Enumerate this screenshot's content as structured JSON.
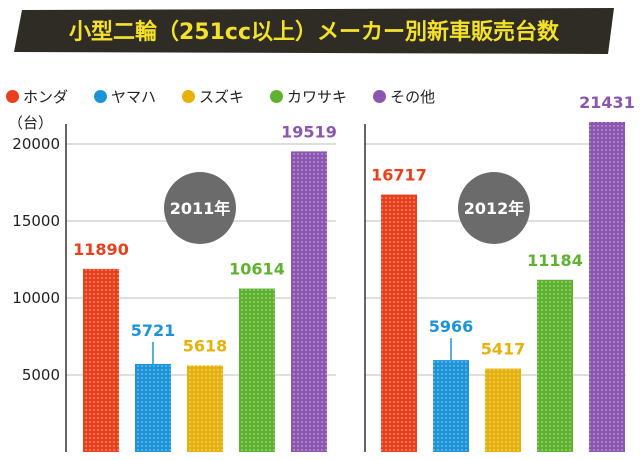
{
  "title": "小型二輪（251cc以上）メーカー別新車販売台数",
  "unit_label": "（台）",
  "colors": {
    "title_bg": "#2f2c25",
    "title_text": "#f4e12a",
    "year_badge": "#6b6b6b"
  },
  "chart_data": [
    {
      "type": "bar",
      "year_label": "2011年",
      "categories": [
        "ホンダ",
        "ヤマハ",
        "スズキ",
        "カワサキ",
        "その他"
      ],
      "values": [
        11890,
        5721,
        5618,
        10614,
        19519
      ],
      "ylim": [
        0,
        21500
      ],
      "yticks": [
        "5000",
        "10000",
        "15000",
        "20000"
      ],
      "grid": true
    },
    {
      "type": "bar",
      "year_label": "2012年",
      "categories": [
        "ホンダ",
        "ヤマハ",
        "スズキ",
        "カワサキ",
        "その他"
      ],
      "values": [
        16717,
        5966,
        5417,
        11184,
        21431
      ],
      "ylim": [
        0,
        21500
      ],
      "grid": true
    }
  ],
  "legend": [
    {
      "label": "ホンダ",
      "color": "#e8401c"
    },
    {
      "label": "ヤマハ",
      "color": "#1d93d8"
    },
    {
      "label": "スズキ",
      "color": "#e6b10c"
    },
    {
      "label": "カワサキ",
      "color": "#5fb22f"
    },
    {
      "label": "その他",
      "color": "#8b56b0"
    }
  ],
  "value_label_colors": [
    "#e8401c",
    "#1d93d8",
    "#e6b10c",
    "#5fb22f",
    "#8b56b0"
  ]
}
